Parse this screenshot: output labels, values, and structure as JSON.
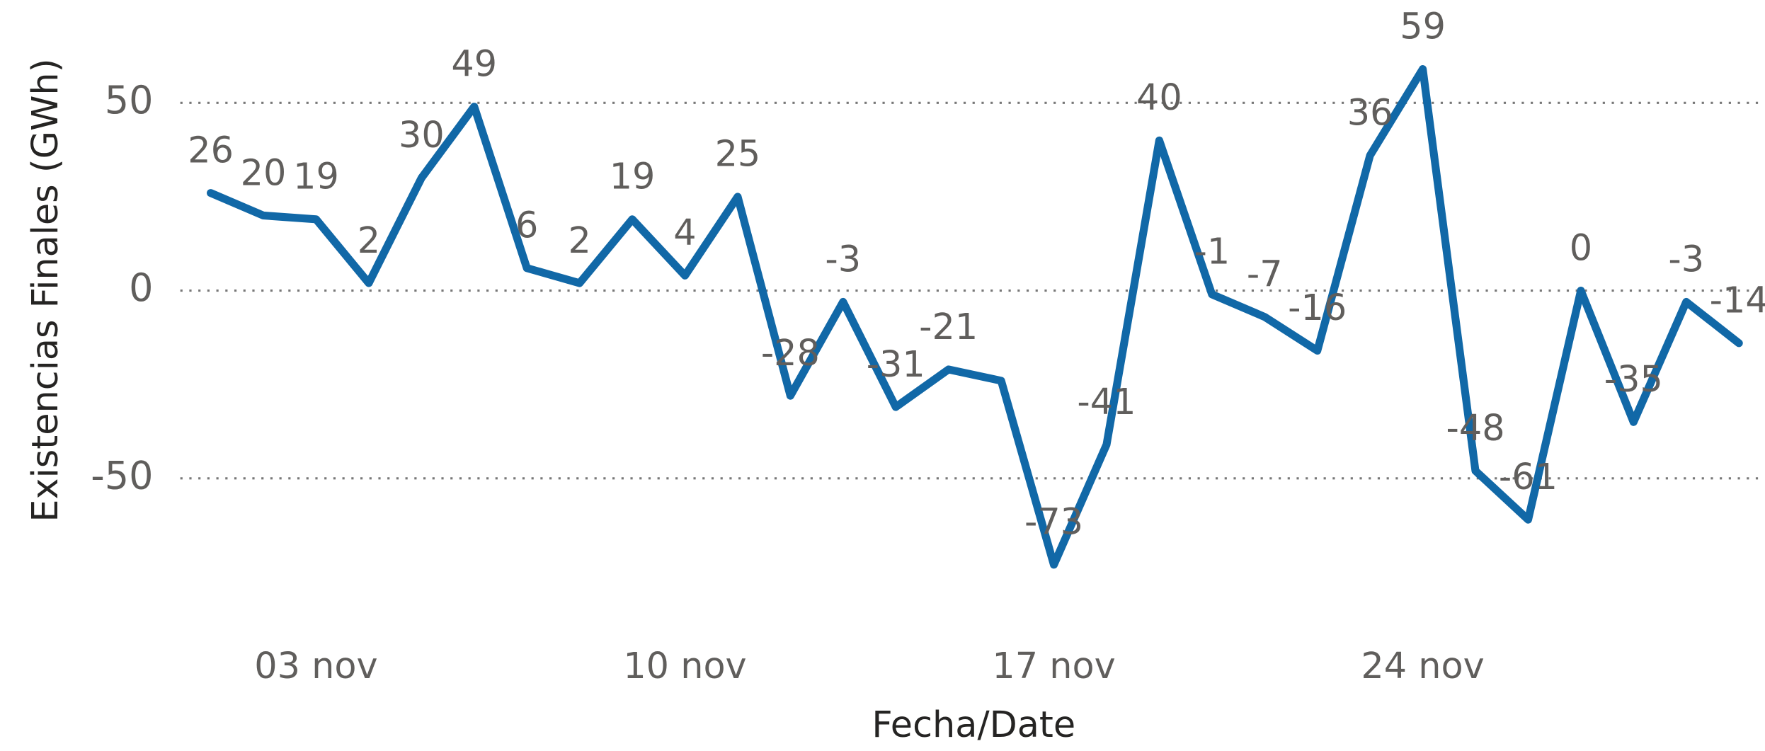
{
  "chart_data": {
    "type": "line",
    "y_label": "Existencias Finales (GWh)",
    "x_label": "Fecha/Date",
    "categories": [
      null,
      null,
      "03 nov",
      null,
      null,
      null,
      null,
      null,
      null,
      "10 nov",
      null,
      null,
      null,
      null,
      null,
      null,
      "17 nov",
      null,
      null,
      null,
      null,
      null,
      null,
      "24 nov",
      null,
      null,
      null,
      null,
      null,
      null
    ],
    "series": [
      {
        "name": "Existencias Finales",
        "color": "#1168a7",
        "values": [
          26,
          20,
          19,
          2,
          30,
          49,
          6,
          2,
          19,
          4,
          25,
          -28,
          -3,
          -31,
          -21,
          -24,
          -73,
          -41,
          40,
          -1,
          -7,
          -16,
          36,
          59,
          -48,
          -61,
          0,
          -35,
          -3,
          -14
        ],
        "value_labels": [
          "26",
          "20",
          "19",
          "2",
          "30",
          "49",
          "6",
          "2",
          "19",
          "4",
          "25",
          "-28",
          "-3",
          "-31",
          "-21",
          null,
          "-73",
          "-41",
          "40",
          "-1",
          "-7",
          "-16",
          "36",
          "59",
          "-48",
          "-61",
          "0",
          "-35",
          "-3",
          "-14"
        ]
      }
    ],
    "ylim": [
      -85,
      75
    ],
    "yticks": [
      -50,
      0,
      50
    ],
    "grid": true
  }
}
